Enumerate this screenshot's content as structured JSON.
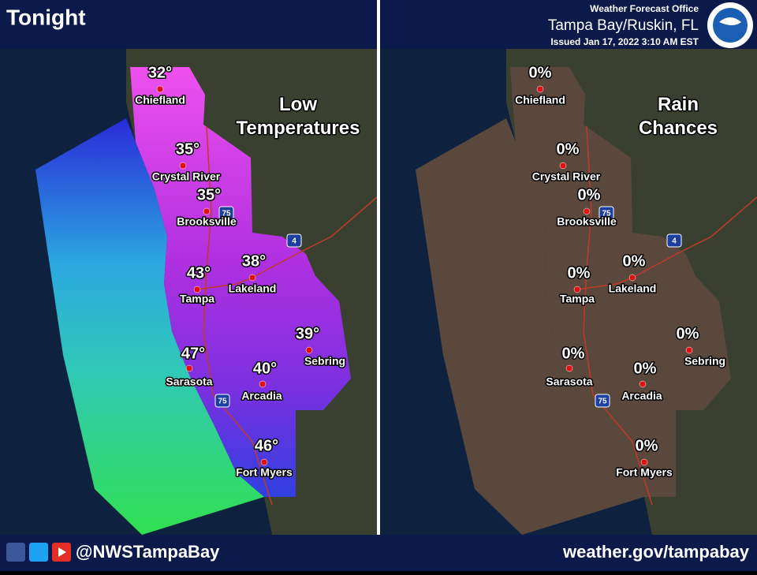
{
  "header": {
    "title": "Tonight",
    "office": "Weather Forecast Office",
    "location": "Tampa Bay/Ruskin, FL",
    "issued": "Issued Jan 17, 2022 3:10 AM EST"
  },
  "maps": [
    {
      "title": "Low Temperatures",
      "cities": [
        {
          "name": "Chiefland",
          "value": "32°"
        },
        {
          "name": "Crystal River",
          "value": "35°"
        },
        {
          "name": "Brooksville",
          "value": "35°"
        },
        {
          "name": "Tampa",
          "value": "43°"
        },
        {
          "name": "Lakeland",
          "value": "38°"
        },
        {
          "name": "Sebring",
          "value": "39°"
        },
        {
          "name": "Sarasota",
          "value": "47°"
        },
        {
          "name": "Arcadia",
          "value": "40°"
        },
        {
          "name": "Fort Myers",
          "value": "46°"
        }
      ],
      "shields": [
        "75",
        "4",
        "75"
      ]
    },
    {
      "title": "Rain Chances",
      "cities": [
        {
          "name": "Chiefland",
          "value": "0%"
        },
        {
          "name": "Crystal River",
          "value": "0%"
        },
        {
          "name": "Brooksville",
          "value": "0%"
        },
        {
          "name": "Tampa",
          "value": "0%"
        },
        {
          "name": "Lakeland",
          "value": "0%"
        },
        {
          "name": "Sebring",
          "value": "0%"
        },
        {
          "name": "Sarasota",
          "value": "0%"
        },
        {
          "name": "Arcadia",
          "value": "0%"
        },
        {
          "name": "Fort Myers",
          "value": "0%"
        }
      ],
      "shields": [
        "75",
        "4",
        "75"
      ]
    }
  ],
  "footer": {
    "handle": "@NWSTampaBay",
    "url": "weather.gov/tampabay"
  }
}
